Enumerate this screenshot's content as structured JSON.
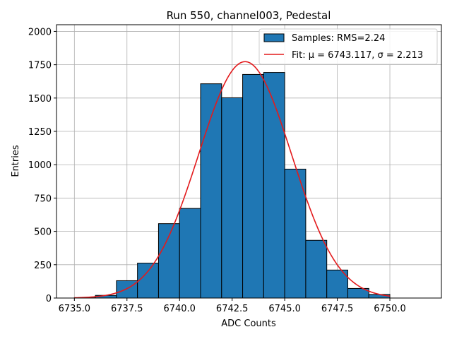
{
  "chart_data": {
    "type": "bar",
    "title": "Run 550, channel003, Pedestal",
    "xlabel": "ADC Counts",
    "ylabel": "Entries",
    "xlim": [
      6734.15,
      6752.45
    ],
    "ylim": [
      0,
      2050
    ],
    "xticks": [
      6735.0,
      6737.5,
      6740.0,
      6742.5,
      6745.0,
      6747.5,
      6750.0
    ],
    "xtick_labels": [
      "6735.0",
      "6737.5",
      "6740.0",
      "6742.5",
      "6745.0",
      "6747.5",
      "6750.0"
    ],
    "yticks": [
      0,
      250,
      500,
      750,
      1000,
      1250,
      1500,
      1750,
      2000
    ],
    "ytick_labels": [
      "0",
      "250",
      "500",
      "750",
      "1000",
      "1250",
      "1500",
      "1750",
      "2000"
    ],
    "grid": true,
    "histogram": {
      "bin_edges": [
        6735,
        6736,
        6737,
        6738,
        6739,
        6740,
        6741,
        6742,
        6743,
        6744,
        6745,
        6746,
        6747,
        6748,
        6749,
        6750
      ],
      "counts": [
        2,
        20,
        130,
        262,
        558,
        672,
        1607,
        1502,
        1677,
        1692,
        967,
        433,
        210,
        72,
        27
      ],
      "color": "#1f77b4",
      "edgecolor": "#000000"
    },
    "fit": {
      "mu": 6743.117,
      "sigma": 2.213,
      "peak": 1773,
      "x_range": [
        6735,
        6750
      ],
      "color": "#e31a1c"
    },
    "legend": {
      "position": "top-right",
      "entries": [
        {
          "label": "Samples: RMS=2.24",
          "kind": "patch"
        },
        {
          "label": "Fit: μ = 6743.117, σ = 2.213",
          "kind": "line"
        }
      ]
    }
  }
}
